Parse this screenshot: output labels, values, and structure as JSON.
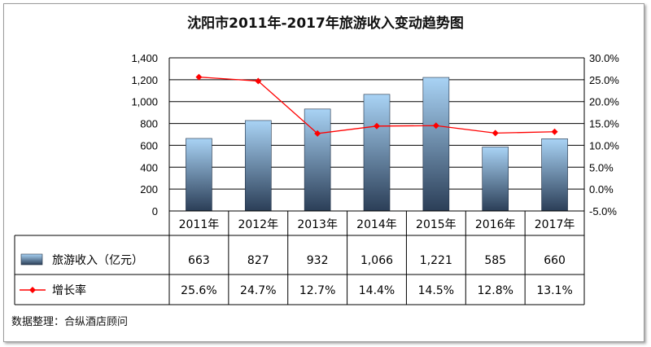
{
  "chart_data": {
    "type": "bar",
    "title": "沈阳市2011年-2017年旅游收入变动趋势图",
    "categories": [
      "2011年",
      "2012年",
      "2013年",
      "2014年",
      "2015年",
      "2016年",
      "2017年"
    ],
    "series": [
      {
        "name": "旅游收入（亿元）",
        "type": "bar",
        "axis": "left",
        "values": [
          663,
          827,
          932,
          1066,
          1221,
          585,
          660
        ],
        "labels": [
          "663",
          "827",
          "932",
          "1,066",
          "1,221",
          "585",
          "660"
        ],
        "color_top": "#a9d3f5",
        "color_bottom": "#2b3e57"
      },
      {
        "name": "增长率",
        "type": "line",
        "axis": "right",
        "values": [
          25.6,
          24.7,
          12.7,
          14.4,
          14.5,
          12.8,
          13.1
        ],
        "labels": [
          "25.6%",
          "24.7%",
          "12.7%",
          "14.4%",
          "14.5%",
          "12.8%",
          "13.1%"
        ],
        "color": "#ff0000"
      }
    ],
    "y_left": {
      "min": 0,
      "max": 1400,
      "ticks": [
        "0",
        "200",
        "400",
        "600",
        "800",
        "1,000",
        "1,200",
        "1,400"
      ]
    },
    "y_right": {
      "min": -5,
      "max": 30,
      "ticks": [
        "-5.0%",
        "0.0%",
        "5.0%",
        "10.0%",
        "15.0%",
        "20.0%",
        "25.0%",
        "30.0%"
      ]
    },
    "grid": true,
    "data_table": true
  },
  "source_note": "数据整理：合纵酒店顾问"
}
